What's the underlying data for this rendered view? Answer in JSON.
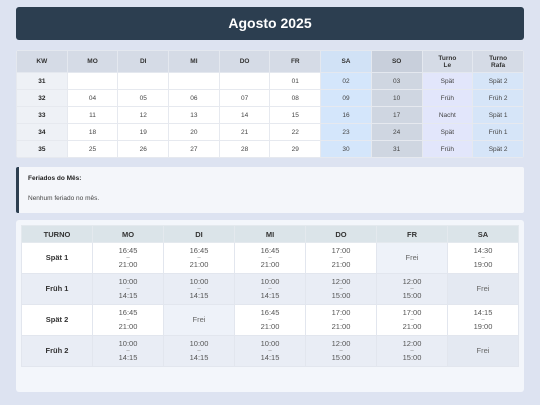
{
  "title": "Agosto 2025",
  "calendar": {
    "headers": [
      "KW",
      "MO",
      "DI",
      "MI",
      "DO",
      "FR",
      "SA",
      "SO",
      "Turno Le",
      "Turno Rafa"
    ],
    "turno_le_label": [
      "Turno",
      "Le"
    ],
    "turno_rafa_label": [
      "Turno",
      "Rafa"
    ],
    "rows": [
      {
        "kw": "31",
        "days": [
          "",
          "",
          "",
          "",
          "01",
          "02",
          "03"
        ],
        "le": "Spät",
        "rafa": "Spät 2"
      },
      {
        "kw": "32",
        "days": [
          "04",
          "05",
          "06",
          "07",
          "08",
          "09",
          "10"
        ],
        "le": "Früh",
        "rafa": "Früh 2"
      },
      {
        "kw": "33",
        "days": [
          "11",
          "12",
          "13",
          "14",
          "15",
          "16",
          "17"
        ],
        "le": "Nacht",
        "rafa": "Spät 1"
      },
      {
        "kw": "34",
        "days": [
          "18",
          "19",
          "20",
          "21",
          "22",
          "23",
          "24"
        ],
        "le": "Spät",
        "rafa": "Früh 1"
      },
      {
        "kw": "35",
        "days": [
          "25",
          "26",
          "27",
          "28",
          "29",
          "30",
          "31"
        ],
        "le": "Früh",
        "rafa": "Spät 2"
      }
    ]
  },
  "holidays": {
    "title": "Feriados do Mês:",
    "text": "Nenhum feriado no mês."
  },
  "schedule": {
    "headers": [
      "TURNO",
      "MO",
      "DI",
      "MI",
      "DO",
      "FR",
      "SA"
    ],
    "dash": "–",
    "rows": [
      {
        "turno": "Spät 1",
        "cells": [
          [
            "16:45",
            "21:00"
          ],
          [
            "16:45",
            "21:00"
          ],
          [
            "16:45",
            "21:00"
          ],
          [
            "17:00",
            "21:00"
          ],
          [
            "Frei"
          ],
          [
            "14:30",
            "19:00"
          ]
        ]
      },
      {
        "turno": "Früh 1",
        "cells": [
          [
            "10:00",
            "14:15"
          ],
          [
            "10:00",
            "14:15"
          ],
          [
            "10:00",
            "14:15"
          ],
          [
            "12:00",
            "15:00"
          ],
          [
            "12:00",
            "15:00"
          ],
          [
            "Frei"
          ]
        ]
      },
      {
        "turno": "Spät 2",
        "cells": [
          [
            "16:45",
            "21:00"
          ],
          [
            "Frei"
          ],
          [
            "16:45",
            "21:00"
          ],
          [
            "17:00",
            "21:00"
          ],
          [
            "17:00",
            "21:00"
          ],
          [
            "14:15",
            "19:00"
          ]
        ]
      },
      {
        "turno": "Früh 2",
        "cells": [
          [
            "10:00",
            "14:15"
          ],
          [
            "10:00",
            "14:15"
          ],
          [
            "10:00",
            "14:15"
          ],
          [
            "12:00",
            "15:00"
          ],
          [
            "12:00",
            "15:00"
          ],
          [
            "Frei"
          ]
        ]
      }
    ]
  }
}
